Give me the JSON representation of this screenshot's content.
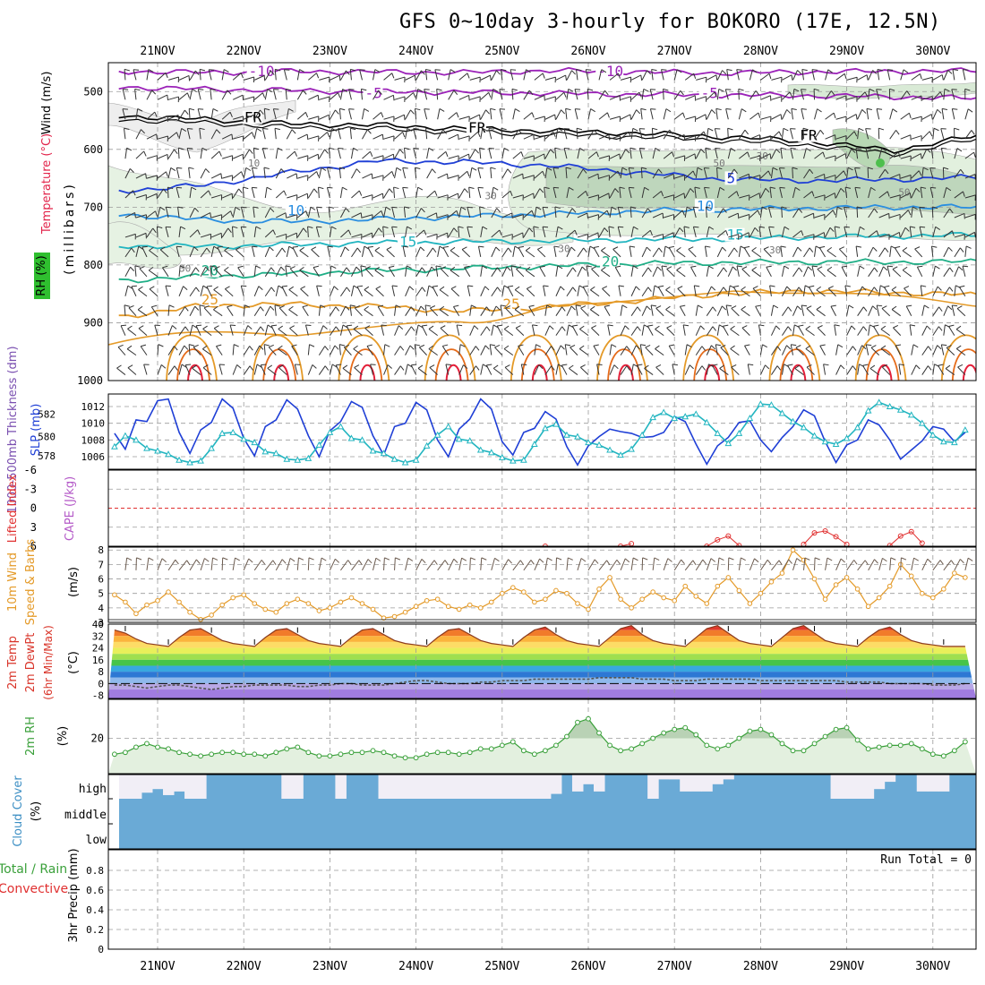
{
  "header": {
    "title": "GFS 0~10day 3-hourly for BOKORO (17E, 12.5N)"
  },
  "days": [
    "21NOV",
    "22NOV",
    "23NOV",
    "24NOV",
    "25NOV",
    "26NOV",
    "27NOV",
    "28NOV",
    "29NOV",
    "30NOV"
  ],
  "colors": {
    "grid": "#9a9a9a",
    "frame": "#000000",
    "blue": "#1f3fd6",
    "cyan": "#22b5c0",
    "orange": "#e49a28",
    "green": "#3aa03a",
    "rh_fill": "#dff0dc",
    "cloud": "#6aaad6",
    "cloud_gap": "#f1eef6",
    "red": "#e03030",
    "purple": "#9b22b8"
  },
  "chart_data": [
    {
      "type": "contour-timeseries",
      "name": "upper-air",
      "ylabel_wind": "Wind (m/s)",
      "ylabel_temp": "Temperature (°C)",
      "ylabel_rh": "RH (%)",
      "ylabel_unit": "(millibars)",
      "ylim": [
        1000,
        450
      ],
      "yticks": [
        500,
        600,
        700,
        800,
        900,
        1000
      ],
      "ytick_labels": [
        "500",
        "600",
        "700",
        "800",
        "900",
        "1000"
      ],
      "isotherms": [
        {
          "label": "-10",
          "p": [
            465,
            467,
            465,
            466,
            467,
            464,
            466,
            468,
            466,
            465,
            464
          ],
          "label_pos": [
            {
              "d": 1.15,
              "p": 467
            },
            {
              "d": 5.2,
              "p": 467
            }
          ]
        },
        {
          "label": "-5",
          "p": [
            492,
            496,
            498,
            500,
            501,
            503,
            505,
            506,
            507,
            509,
            512
          ],
          "label_pos": [
            {
              "d": 2.5,
              "p": 505
            },
            {
              "d": 6.4,
              "p": 505
            }
          ]
        },
        {
          "label": "FR",
          "p": [
            542,
            548,
            556,
            558,
            564,
            568,
            572,
            578,
            586,
            602,
            575
          ],
          "label_pos": [
            {
              "d": 1.1,
              "p": 547
            },
            {
              "d": 3.7,
              "p": 565
            },
            {
              "d": 7.55,
              "p": 578
            }
          ]
        },
        {
          "label": "5",
          "p": [
            672,
            662,
            640,
            620,
            622,
            628,
            640,
            652,
            654,
            652,
            648
          ],
          "label_pos": [
            {
              "d": 6.7,
              "p": 652
            }
          ]
        },
        {
          "label": "10",
          "p": [
            712,
            722,
            725,
            721,
            716,
            712,
            707,
            704,
            702,
            700,
            700
          ],
          "label_pos": [
            {
              "d": 1.6,
              "p": 708
            },
            {
              "d": 6.35,
              "p": 700
            }
          ]
        },
        {
          "label": "15",
          "p": [
            767,
            768,
            765,
            762,
            760,
            758,
            756,
            755,
            752,
            750,
            748
          ],
          "label_pos": [
            {
              "d": 2.9,
              "p": 762
            },
            {
              "d": 6.7,
              "p": 750
            }
          ]
        },
        {
          "label": "20",
          "p": [
            827,
            820,
            815,
            810,
            806,
            802,
            798,
            796,
            795,
            795,
            794
          ],
          "label_pos": [
            {
              "d": 0.6,
              "p": 812
            },
            {
              "d": 5.25,
              "p": 796
            }
          ]
        },
        {
          "label": "25",
          "p": [
            890,
            870,
            868,
            872,
            880,
            872,
            862,
            850,
            845,
            848,
            852
          ],
          "label_pos": [
            {
              "d": 0.6,
              "p": 862
            },
            {
              "d": 4.1,
              "p": 870
            }
          ]
        }
      ],
      "rh_labels": [
        {
          "text": "10",
          "d": 1.05,
          "p": 630
        },
        {
          "text": "30",
          "d": 3.8,
          "p": 686
        },
        {
          "text": "30",
          "d": 4.65,
          "p": 778
        },
        {
          "text": "30",
          "d": 0.25,
          "p": 812
        },
        {
          "text": "50",
          "d": 6.45,
          "p": 630
        },
        {
          "text": "30",
          "d": 6.95,
          "p": 617
        },
        {
          "text": "30",
          "d": 7.1,
          "p": 780
        },
        {
          "text": "50",
          "d": 8.6,
          "p": 680
        }
      ]
    },
    {
      "type": "line",
      "name": "slp-thickness",
      "ylabel_left": "1000-500mb Thickness (dm)",
      "ylabel_right": "SLP (mb)",
      "y2ticks": [
        1006,
        1008,
        1010,
        1012
      ],
      "y1ticks": [
        578,
        580,
        582
      ],
      "ylim": [
        1004.5,
        1013.5
      ],
      "series": [
        {
          "name": "SLP (mb)",
          "marker": "none",
          "values": [
            1008.8,
            1006.9,
            1010.4,
            1010.2,
            1012.7,
            1012.9,
            1008.9,
            1006.4,
            1009.2,
            1010.1,
            1012.9,
            1011.8,
            1008.2,
            1006.1,
            1009.6,
            1010.4,
            1012.8,
            1011.7,
            1008.5,
            1006.0,
            1009.1,
            1010.2,
            1012.6,
            1011.9,
            1008.5,
            1006.2,
            1009.6,
            1010.0,
            1012.5,
            1011.6,
            1008.0,
            1006.0,
            1009.3,
            1010.5,
            1012.9,
            1011.7,
            1007.8,
            1006.2,
            1008.9,
            1009.4,
            1011.4,
            1010.5,
            1007.2,
            1005.0,
            1007.3,
            1008.4,
            1009.3,
            1009.0,
            1008.8,
            1008.3,
            1008.4,
            1008.9,
            1010.8,
            1010.2,
            1007.5,
            1005.1,
            1007.3,
            1008.3,
            1010.1,
            1010.3,
            1008.0,
            1006.6,
            1008.3,
            1009.6,
            1011.6,
            1010.9,
            1007.8,
            1005.3,
            1007.4,
            1008.0,
            1010.4,
            1009.8,
            1008.0,
            1005.7,
            1006.8,
            1007.9,
            1009.6,
            1009.3,
            1007.8,
            1008.9
          ]
        },
        {
          "name": "1000-500mb Thickness (dm)",
          "marker": "triangle",
          "values": [
            1007.2,
            1008.5,
            1008.0,
            1007.0,
            1006.7,
            1006.3,
            1005.6,
            1005.3,
            1005.5,
            1007.0,
            1008.8,
            1008.9,
            1008.1,
            1007.7,
            1006.6,
            1006.4,
            1005.7,
            1005.6,
            1005.8,
            1007.4,
            1008.9,
            1009.6,
            1008.2,
            1008.0,
            1006.7,
            1006.4,
            1005.7,
            1005.3,
            1005.6,
            1007.3,
            1008.6,
            1009.6,
            1008.1,
            1007.9,
            1006.8,
            1006.5,
            1005.9,
            1005.5,
            1005.6,
            1007.5,
            1009.4,
            1009.9,
            1008.6,
            1008.4,
            1007.7,
            1007.4,
            1006.8,
            1006.2,
            1006.9,
            1008.6,
            1010.7,
            1011.3,
            1010.6,
            1010.8,
            1011.1,
            1010.1,
            1008.8,
            1007.6,
            1008.8,
            1010.6,
            1012.3,
            1012.2,
            1011.2,
            1010.2,
            1009.5,
            1008.5,
            1007.8,
            1007.5,
            1008.2,
            1009.5,
            1011.5,
            1012.5,
            1012.0,
            1011.6,
            1011.0,
            1010.0,
            1008.6,
            1007.8,
            1007.7,
            1009.2
          ]
        }
      ]
    },
    {
      "type": "line",
      "name": "lifted-index",
      "ylabel_left": "Lifted Index",
      "ylabel_right": "CAPE (J/kg)",
      "ylim": [
        6,
        -6
      ],
      "yticks": [
        -6,
        -3,
        0,
        3,
        6
      ],
      "ytick_labels": [
        "-6",
        "-3",
        "0",
        "3",
        "6"
      ],
      "series": [
        {
          "name": "Lifted Index",
          "marker": "circle",
          "values": [
            null,
            null,
            null,
            null,
            null,
            null,
            null,
            null,
            null,
            null,
            null,
            null,
            null,
            null,
            null,
            null,
            null,
            null,
            null,
            null,
            null,
            null,
            null,
            null,
            null,
            null,
            null,
            null,
            null,
            null,
            null,
            null,
            null,
            null,
            null,
            null,
            null,
            null,
            null,
            null,
            6.0,
            null,
            null,
            null,
            null,
            null,
            null,
            6.0,
            5.6,
            null,
            null,
            null,
            null,
            null,
            null,
            6.0,
            5.0,
            4.4,
            5.9,
            null,
            null,
            null,
            null,
            null,
            5.7,
            3.9,
            3.6,
            4.5,
            5.7,
            null,
            null,
            null,
            5.9,
            4.4,
            3.7,
            5.5,
            null,
            null,
            null,
            null
          ]
        }
      ]
    },
    {
      "type": "line",
      "name": "wind10m",
      "ylabel_left": "10m Wind",
      "ylabel_mid": "Speed & Barbs",
      "ylabel_right": "(m/s)",
      "ylim": [
        3,
        8.2
      ],
      "yticks": [
        3,
        4,
        5,
        6,
        7,
        8
      ],
      "ytick_labels": [
        "3",
        "4",
        "5",
        "6",
        "7",
        "8"
      ],
      "series": [
        {
          "name": "Speed",
          "marker": "circle",
          "values": [
            4.9,
            4.4,
            3.6,
            4.2,
            4.5,
            5.1,
            4.4,
            3.7,
            3.2,
            3.5,
            4.2,
            4.7,
            4.9,
            4.3,
            3.9,
            3.7,
            4.3,
            4.6,
            4.3,
            3.8,
            4.0,
            4.4,
            4.7,
            4.3,
            3.9,
            3.3,
            3.4,
            3.7,
            4.1,
            4.5,
            4.6,
            4.1,
            3.9,
            4.2,
            4.0,
            4.4,
            5.0,
            5.4,
            5.1,
            4.4,
            4.6,
            5.2,
            5.0,
            4.3,
            3.9,
            5.3,
            6.1,
            4.6,
            4.0,
            4.6,
            5.1,
            4.7,
            4.5,
            5.5,
            4.8,
            4.3,
            5.5,
            6.1,
            5.2,
            4.3,
            5.0,
            5.8,
            6.4,
            8.0,
            7.3,
            6.0,
            4.6,
            5.6,
            6.1,
            5.3,
            4.1,
            4.7,
            5.5,
            7.0,
            6.2,
            5.0,
            4.7,
            5.3,
            6.4,
            6.1
          ]
        }
      ]
    },
    {
      "type": "area",
      "name": "temp2m",
      "ylabel_left": "2m Temp",
      "ylabel_mid": "2m DewPt",
      "ylabel_mid2": "(6hr Min/Max)",
      "ylabel_right": "(°C)",
      "ylim": [
        -10,
        40
      ],
      "yticks": [
        -8,
        0,
        8,
        16,
        24,
        32,
        40
      ],
      "ytick_labels": [
        "-8",
        "0",
        "8",
        "16",
        "24",
        "32",
        "40"
      ],
      "series": [
        {
          "name": "2m Temp",
          "values": [
            36,
            34,
            30,
            27,
            26,
            25,
            31,
            36,
            37,
            33,
            29,
            27,
            26,
            25,
            31,
            36,
            37,
            33,
            29,
            27,
            26,
            25,
            31,
            36,
            37,
            33,
            29,
            27,
            26,
            25,
            31,
            36,
            37,
            33,
            29,
            27,
            26,
            25,
            31,
            36,
            38,
            33,
            29,
            27,
            26,
            25,
            31,
            37,
            39,
            33,
            29,
            27,
            26,
            25,
            31,
            37,
            39,
            34,
            29,
            27,
            26,
            25,
            31,
            37,
            39,
            34,
            29,
            27,
            26,
            25,
            31,
            36,
            38,
            33,
            29,
            27,
            26,
            25,
            25,
            25
          ]
        },
        {
          "name": "2m DewPt",
          "values": [
            -1,
            -1,
            -2,
            -3,
            -2,
            -1,
            -1,
            -2,
            -3,
            -4,
            -3,
            -2,
            -2,
            -1,
            -1,
            -1,
            -1,
            -2,
            -2,
            -1,
            -1,
            0,
            0,
            -1,
            -1,
            -1,
            0,
            1,
            2,
            2,
            1,
            0,
            0,
            0,
            1,
            1,
            2,
            2,
            2,
            3,
            3,
            3,
            3,
            3,
            3,
            4,
            4,
            4,
            4,
            3,
            3,
            3,
            2,
            2,
            2,
            3,
            3,
            3,
            3,
            3,
            2,
            2,
            2,
            2,
            2,
            2,
            2,
            2,
            1,
            1,
            1,
            1,
            0,
            0,
            0,
            0,
            -1,
            -1,
            -1,
            0
          ]
        }
      ]
    },
    {
      "type": "area",
      "name": "rh2m",
      "ylabel_left": "2m RH",
      "ylabel_right": "(%)",
      "ylim": [
        0,
        42
      ],
      "yticks": [
        20
      ],
      "ytick_labels": [
        "20"
      ],
      "series": [
        {
          "name": "2m RH",
          "values": [
            11,
            12,
            15,
            17,
            15,
            14,
            12,
            11,
            10,
            11,
            12,
            12,
            11,
            11,
            10,
            12,
            14,
            15,
            12,
            10,
            10,
            11,
            12,
            12,
            13,
            12,
            10,
            9,
            9,
            11,
            12,
            12,
            11,
            12,
            14,
            14,
            16,
            18,
            13,
            11,
            13,
            16,
            21,
            29,
            31,
            23,
            16,
            13,
            14,
            17,
            20,
            23,
            25,
            26,
            22,
            16,
            14,
            16,
            20,
            24,
            25,
            22,
            17,
            13,
            13,
            17,
            21,
            25,
            26,
            19,
            14,
            15,
            16,
            16,
            17,
            14,
            11,
            10,
            13,
            18
          ]
        }
      ]
    },
    {
      "type": "heatmap",
      "name": "cloud-cover",
      "ylabel_left": "Cloud Cover",
      "ylabel_right": "(%)",
      "level_labels": [
        "high",
        "middle",
        "low"
      ],
      "high_pct": [
        0,
        0,
        0,
        25,
        40,
        15,
        30,
        0,
        0,
        100,
        100,
        100,
        100,
        100,
        100,
        100,
        0,
        0,
        100,
        100,
        100,
        0,
        100,
        100,
        100,
        0,
        0,
        0,
        0,
        0,
        0,
        0,
        0,
        0,
        0,
        0,
        0,
        0,
        0,
        0,
        0,
        20,
        100,
        30,
        60,
        30,
        100,
        100,
        100,
        100,
        0,
        80,
        80,
        30,
        30,
        30,
        60,
        80,
        100,
        100,
        100,
        100,
        100,
        100,
        100,
        100,
        100,
        0,
        0,
        0,
        0,
        40,
        70,
        100,
        100,
        30,
        30,
        30,
        100,
        100
      ]
    },
    {
      "type": "bar",
      "name": "precip",
      "ylabel_left": "Total / Rain",
      "ylabel_left2": "Convective",
      "ylabel_right": "3hr Precip (mm)",
      "ylim": [
        0,
        1
      ],
      "yticks": [
        0,
        0.2,
        0.4,
        0.6,
        0.8
      ],
      "ytick_labels": [
        "0",
        "0.2",
        "0.4",
        "0.6",
        "0.8"
      ],
      "run_total_label": "Run Total = 0",
      "values": []
    }
  ]
}
